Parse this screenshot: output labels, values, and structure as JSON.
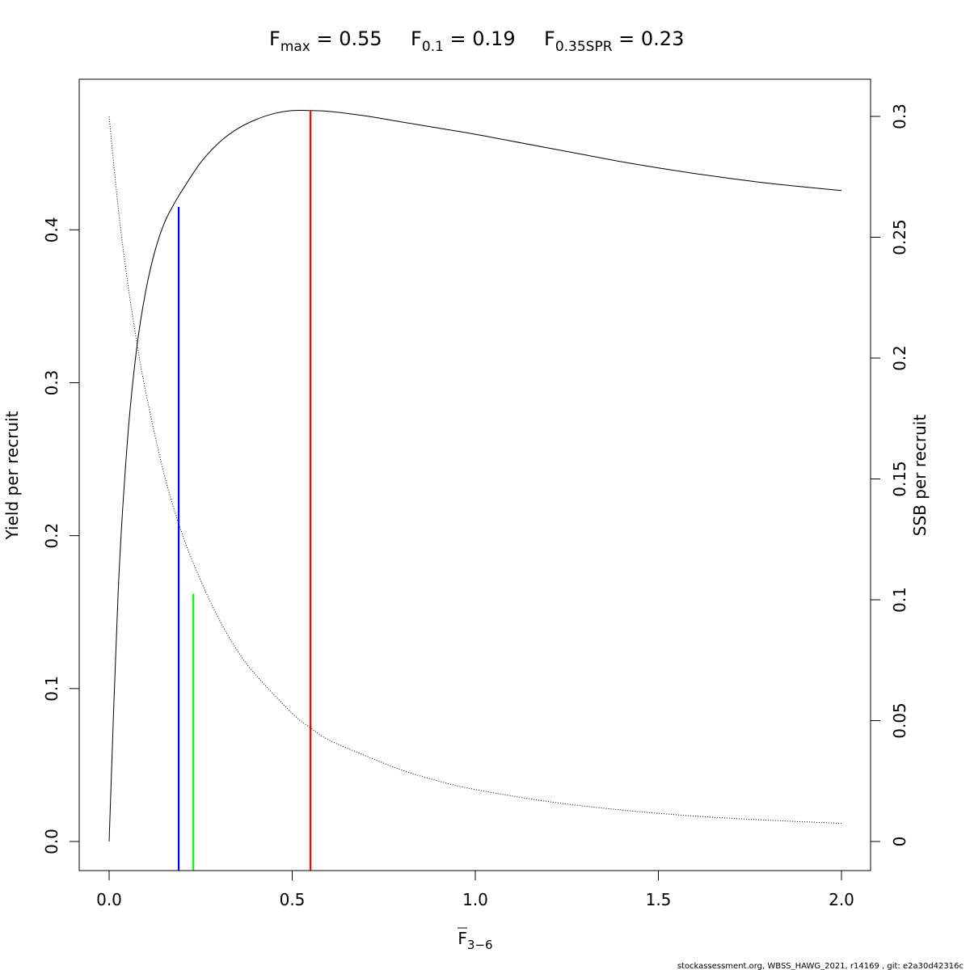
{
  "header": {
    "fmax": {
      "base": "F",
      "sub": "max",
      "rest": " = 0.55"
    },
    "f01": {
      "base": "F",
      "sub": "0.1",
      "rest": " = 0.19"
    },
    "fspr": {
      "base": "F",
      "sub": "0.35SPR",
      "rest": " = 0.23"
    }
  },
  "chart_data": {
    "type": "line",
    "title": "",
    "xlabel": {
      "base": "F",
      "sub": "3−6"
    },
    "ylabel_left": "Yield per recruit",
    "ylabel_right": "SSB per recruit",
    "xlim": [
      0,
      2
    ],
    "ylim_left": [
      0,
      0.48
    ],
    "ylim_right": [
      0,
      0.3
    ],
    "x_ticks": [
      "0.0",
      "0.5",
      "1.0",
      "1.5",
      "2.0"
    ],
    "x_tick_values": [
      0,
      0.5,
      1.0,
      1.5,
      2.0
    ],
    "left_ticks": [
      "0.0",
      "0.1",
      "0.2",
      "0.3",
      "0.4"
    ],
    "left_tick_values": [
      0,
      0.1,
      0.2,
      0.3,
      0.4
    ],
    "right_ticks": [
      "0",
      "0.05",
      "0.1",
      "0.15",
      "0.2",
      "0.25",
      "0.3"
    ],
    "right_tick_values": [
      0,
      0.05,
      0.1,
      0.15,
      0.2,
      0.25,
      0.3
    ],
    "grid": false,
    "series": [
      {
        "axis": "left",
        "line": "solid",
        "color": "#000000",
        "x": [
          0,
          0.025,
          0.05,
          0.075,
          0.1,
          0.125,
          0.15,
          0.175,
          0.2,
          0.25,
          0.3,
          0.35,
          0.4,
          0.45,
          0.5,
          0.55,
          0.6,
          0.7,
          0.8,
          0.9,
          1.0,
          1.1,
          1.2,
          1.3,
          1.4,
          1.5,
          1.6,
          1.7,
          1.8,
          1.9,
          2.0
        ],
        "y": [
          0,
          0.165,
          0.262,
          0.322,
          0.36,
          0.386,
          0.404,
          0.416,
          0.426,
          0.444,
          0.457,
          0.466,
          0.472,
          0.476,
          0.478,
          0.478,
          0.4775,
          0.4745,
          0.4705,
          0.4665,
          0.4625,
          0.458,
          0.4535,
          0.449,
          0.4445,
          0.4405,
          0.4368,
          0.4335,
          0.4305,
          0.428,
          0.4257
        ]
      },
      {
        "axis": "right",
        "line": "dotted",
        "color": "#000000",
        "x": [
          0,
          0.025,
          0.05,
          0.075,
          0.1,
          0.15,
          0.2,
          0.25,
          0.3,
          0.35,
          0.4,
          0.5,
          0.55,
          0.6,
          0.7,
          0.8,
          0.9,
          1.0,
          1.2,
          1.4,
          1.6,
          1.8,
          2.0
        ],
        "y": [
          0.3,
          0.262,
          0.232,
          0.207,
          0.186,
          0.152,
          0.127,
          0.108,
          0.092,
          0.079,
          0.069,
          0.053,
          0.047,
          0.042,
          0.0355,
          0.0295,
          0.025,
          0.0215,
          0.0165,
          0.013,
          0.0105,
          0.0088,
          0.0075
        ]
      }
    ],
    "reference_lines": [
      {
        "name": "Fmax",
        "x": 0.55,
        "y_left": 0.478,
        "color": "#ff0000"
      },
      {
        "name": "F0.1",
        "x": 0.19,
        "y_left": 0.415,
        "color": "#0000ff"
      },
      {
        "name": "F0.35SPR",
        "x": 0.23,
        "y_left": 0.162,
        "color": "#00ff00"
      }
    ]
  },
  "footer": "stockassessment.org, WBSS_HAWG_2021, r14169 , git: e2a30d42316c"
}
